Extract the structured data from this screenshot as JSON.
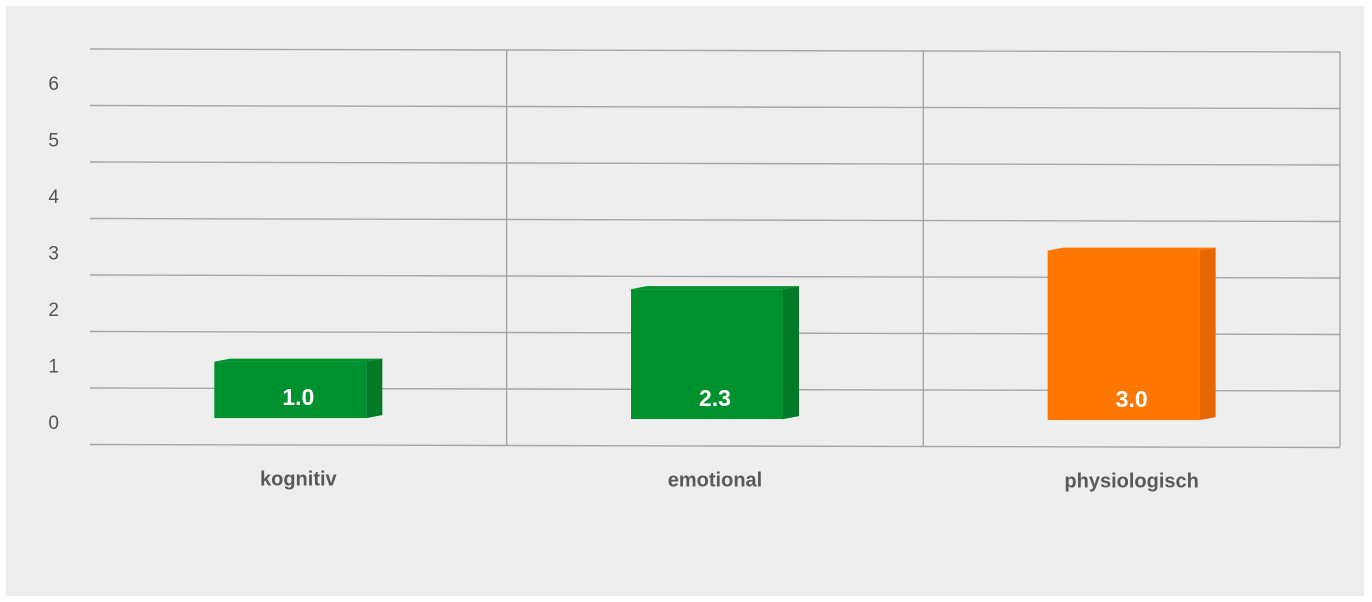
{
  "chart_data": {
    "type": "bar",
    "categories": [
      "kognitiv",
      "emotional",
      "physiologisch"
    ],
    "values": [
      1.0,
      2.3,
      3.0
    ],
    "value_labels": [
      "1.0",
      "2.3",
      "3.0"
    ],
    "bar_colors": [
      "#00912f",
      "#00912f",
      "#ff7700"
    ],
    "bar_side_colors": [
      "#007a25",
      "#007a25",
      "#e86600"
    ],
    "yticks": [
      "0",
      "1",
      "2",
      "3",
      "4",
      "5",
      "6"
    ],
    "ylim": [
      0,
      7
    ],
    "grid": true,
    "title": "",
    "xlabel": "",
    "ylabel": "",
    "gridline_color": "#a6a6a6",
    "background": "#eeeeee"
  }
}
